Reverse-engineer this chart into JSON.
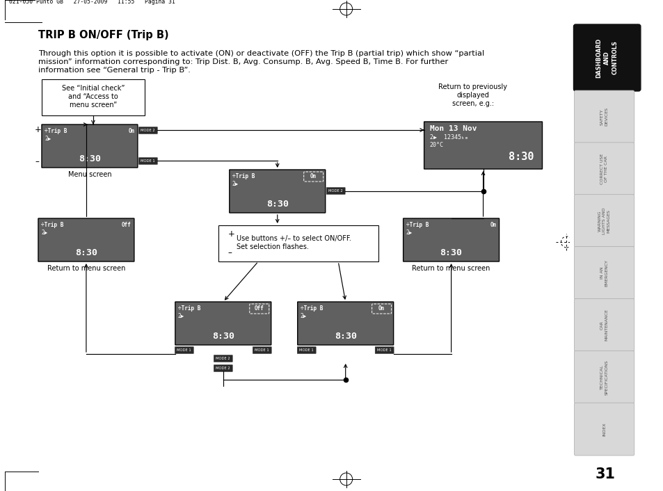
{
  "title": "TRIP B ON/OFF (Trip B)",
  "body_line1": "Through this option it is possible to activate (ON) or deactivate (OFF) the Trip B (partial trip) which show “partial",
  "body_line2": "mission” information corresponding to: Trip Dist. B, Avg. Consump. B, Avg. Speed B, Time B. For further",
  "body_line3": "information see “General trip - Trip B”.",
  "header_text": "021-050 Punto GB   27-05-2009   11:55   Pagina 31",
  "page_number": "31",
  "sidebar_items": [
    "DASHBOARD\nAND\nCONTROLS",
    "SAFETY\nDEVICES",
    "CORRECT USE\nOF THE CAR",
    "WARNING\nLIGHTS AND\nMESSAGES",
    "IN AN\nEMERGENCY",
    "CAR\nMAINTENANCE",
    "TECHNICAL\nSPECIFICATIONS",
    "INDEX"
  ],
  "bg_color": "#ffffff",
  "screen_bg": "#606060",
  "screen_border": "#000000",
  "arrow_color": "#000000",
  "mode_tag_bg": "#2a2a2a",
  "sidebar_active_bg": "#111111",
  "sidebar_inactive_bg": "#d8d8d8",
  "sidebar_text_inactive": "#555555"
}
